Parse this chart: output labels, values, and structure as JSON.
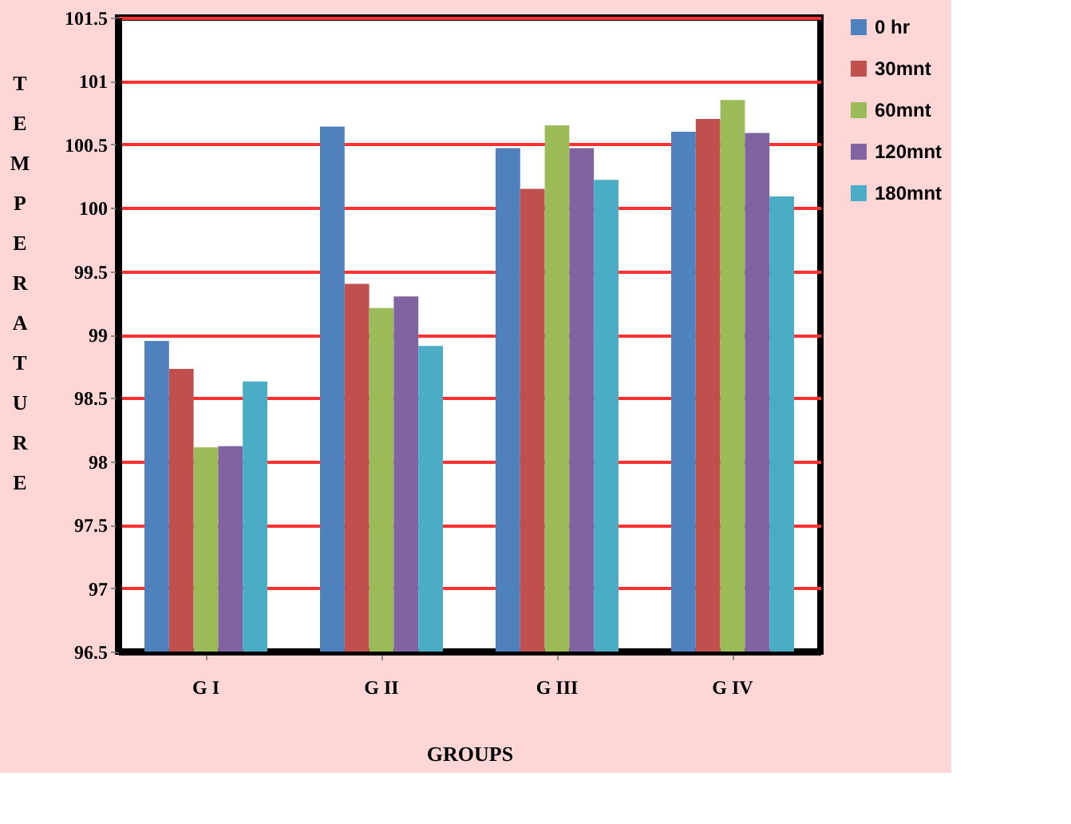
{
  "chart_data": {
    "type": "bar",
    "xlabel": "GROUPS",
    "ylabel": "TEMPERATURE",
    "categories": [
      "G I",
      "G II",
      "G III",
      "G IV"
    ],
    "series": [
      {
        "name": "0 hr",
        "color": "#4f81bd",
        "values": [
          98.95,
          100.64,
          100.47,
          100.6
        ]
      },
      {
        "name": "30mnt",
        "color": "#c0504d",
        "values": [
          98.73,
          99.4,
          100.15,
          100.7
        ]
      },
      {
        "name": "60mnt",
        "color": "#9bbb59",
        "values": [
          98.11,
          99.21,
          100.65,
          100.85
        ]
      },
      {
        "name": "120mnt",
        "color": "#8064a2",
        "values": [
          98.12,
          99.3,
          100.47,
          100.59
        ]
      },
      {
        "name": "180mnt",
        "color": "#4bacc6",
        "values": [
          98.63,
          98.91,
          100.22,
          100.09
        ]
      }
    ],
    "ylim": [
      96.5,
      101.5
    ],
    "yticks": [
      96.5,
      97,
      97.5,
      98,
      98.5,
      99,
      99.5,
      100,
      100.5,
      101,
      101.5
    ],
    "grid": "y",
    "legend": "right"
  }
}
